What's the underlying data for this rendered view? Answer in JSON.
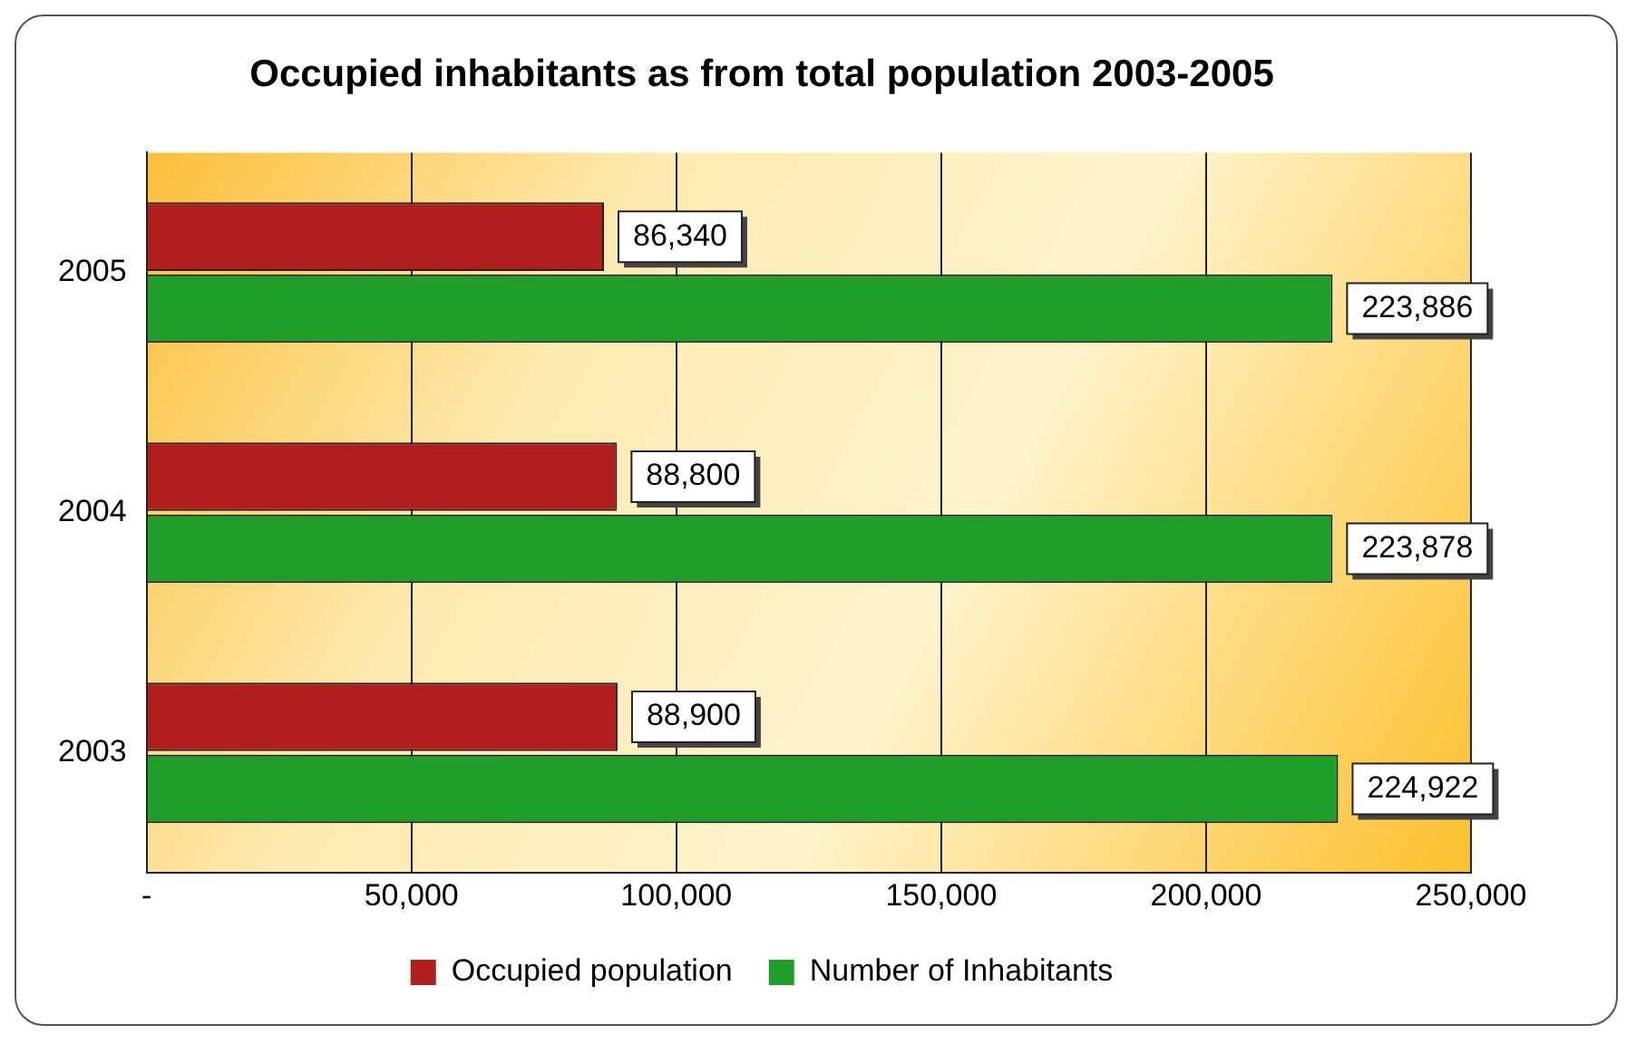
{
  "chart_data": {
    "type": "bar",
    "orientation": "horizontal",
    "title": "Occupied inhabitants as from total population 2003-2005",
    "categories": [
      "2005",
      "2004",
      "2003"
    ],
    "series": [
      {
        "name": "Occupied population",
        "color": "#b01e1e",
        "values": [
          86340,
          88800,
          88900
        ],
        "value_labels": [
          "86,340",
          "88,800",
          "88,900"
        ]
      },
      {
        "name": "Number of Inhabitants",
        "color": "#1f9e2a",
        "values": [
          223886,
          223878,
          224922
        ],
        "value_labels": [
          "223,886",
          "223,878",
          "224,922"
        ]
      }
    ],
    "xlim": [
      0,
      250000
    ],
    "xticks": [
      {
        "value": 0,
        "label": "-"
      },
      {
        "value": 50000,
        "label": "50,000"
      },
      {
        "value": 100000,
        "label": "100,000"
      },
      {
        "value": 150000,
        "label": "150,000"
      },
      {
        "value": 200000,
        "label": "200,000"
      },
      {
        "value": 250000,
        "label": "250,000"
      }
    ],
    "grid": "x",
    "legend": "bottom"
  }
}
